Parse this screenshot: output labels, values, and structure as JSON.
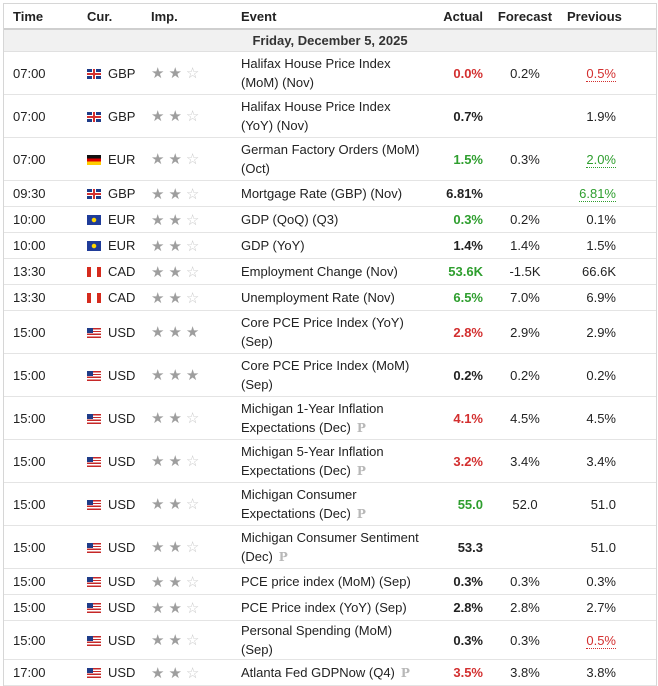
{
  "columns": {
    "time": "Time",
    "currency": "Cur.",
    "importance": "Imp.",
    "event": "Event",
    "actual": "Actual",
    "forecast": "Forecast",
    "previous": "Previous"
  },
  "date_header": "Friday, December 5, 2025",
  "colors": {
    "negative": "#d32f2f",
    "positive": "#2e9e2e"
  },
  "preliminary_marker": "P",
  "events": [
    {
      "time": "07:00",
      "flag": "gb",
      "currency": "GBP",
      "importance": 2,
      "event": "Halifax House Price Index (MoM) (Nov)",
      "lines": 2,
      "actual": "0.0%",
      "actual_color": "red",
      "forecast": "0.2%",
      "previous": "0.5%",
      "previous_color": "red",
      "previous_revised": true
    },
    {
      "time": "07:00",
      "flag": "gb",
      "currency": "GBP",
      "importance": 2,
      "event": "Halifax House Price Index (YoY) (Nov)",
      "lines": 2,
      "actual": "0.7%",
      "forecast": "",
      "previous": "1.9%"
    },
    {
      "time": "07:00",
      "flag": "de",
      "currency": "EUR",
      "importance": 2,
      "event": "German Factory Orders (MoM) (Oct)",
      "lines": 2,
      "actual": "1.5%",
      "actual_color": "green",
      "forecast": "0.3%",
      "previous": "2.0%",
      "previous_color": "green",
      "previous_revised": true
    },
    {
      "time": "09:30",
      "flag": "gb",
      "currency": "GBP",
      "importance": 2,
      "event": "Mortgage Rate (GBP) (Nov)",
      "lines": 1,
      "actual": "6.81%",
      "forecast": "",
      "previous": "6.81%",
      "previous_color": "green",
      "previous_revised": true
    },
    {
      "time": "10:00",
      "flag": "eu",
      "currency": "EUR",
      "importance": 2,
      "event": "GDP (QoQ) (Q3)",
      "lines": 1,
      "actual": "0.3%",
      "actual_color": "green",
      "forecast": "0.2%",
      "previous": "0.1%"
    },
    {
      "time": "10:00",
      "flag": "eu",
      "currency": "EUR",
      "importance": 2,
      "event": "GDP (YoY)",
      "lines": 1,
      "actual": "1.4%",
      "forecast": "1.4%",
      "previous": "1.5%"
    },
    {
      "time": "13:30",
      "flag": "ca",
      "currency": "CAD",
      "importance": 2,
      "event": "Employment Change (Nov)",
      "lines": 1,
      "actual": "53.6K",
      "actual_color": "green",
      "forecast": "-1.5K",
      "previous": "66.6K"
    },
    {
      "time": "13:30",
      "flag": "ca",
      "currency": "CAD",
      "importance": 2,
      "event": "Unemployment Rate (Nov)",
      "lines": 1,
      "actual": "6.5%",
      "actual_color": "green",
      "forecast": "7.0%",
      "previous": "6.9%"
    },
    {
      "time": "15:00",
      "flag": "us",
      "currency": "USD",
      "importance": 3,
      "event": "Core PCE Price Index (YoY) (Sep)",
      "lines": 2,
      "actual": "2.8%",
      "actual_color": "red",
      "forecast": "2.9%",
      "previous": "2.9%"
    },
    {
      "time": "15:00",
      "flag": "us",
      "currency": "USD",
      "importance": 3,
      "event": "Core PCE Price Index (MoM) (Sep)",
      "lines": 2,
      "actual": "0.2%",
      "forecast": "0.2%",
      "previous": "0.2%"
    },
    {
      "time": "15:00",
      "flag": "us",
      "currency": "USD",
      "importance": 2,
      "event": "Michigan 1-Year Inflation Expectations (Dec)",
      "lines": 2,
      "preliminary": true,
      "actual": "4.1%",
      "actual_color": "red",
      "forecast": "4.5%",
      "previous": "4.5%"
    },
    {
      "time": "15:00",
      "flag": "us",
      "currency": "USD",
      "importance": 2,
      "event": "Michigan 5-Year Inflation Expectations (Dec)",
      "lines": 2,
      "preliminary": true,
      "actual": "3.2%",
      "actual_color": "red",
      "forecast": "3.4%",
      "previous": "3.4%"
    },
    {
      "time": "15:00",
      "flag": "us",
      "currency": "USD",
      "importance": 2,
      "event": "Michigan Consumer Expectations (Dec)",
      "lines": 2,
      "preliminary": true,
      "actual": "55.0",
      "actual_color": "green",
      "forecast": "52.0",
      "previous": "51.0"
    },
    {
      "time": "15:00",
      "flag": "us",
      "currency": "USD",
      "importance": 2,
      "event": "Michigan Consumer Sentiment (Dec)",
      "lines": 2,
      "preliminary": true,
      "actual": "53.3",
      "forecast": "",
      "previous": "51.0"
    },
    {
      "time": "15:00",
      "flag": "us",
      "currency": "USD",
      "importance": 2,
      "event": "PCE price index (MoM) (Sep)",
      "lines": 1,
      "actual": "0.3%",
      "forecast": "0.3%",
      "previous": "0.3%"
    },
    {
      "time": "15:00",
      "flag": "us",
      "currency": "USD",
      "importance": 2,
      "event": "PCE Price index (YoY) (Sep)",
      "lines": 1,
      "actual": "2.8%",
      "forecast": "2.8%",
      "previous": "2.7%"
    },
    {
      "time": "15:00",
      "flag": "us",
      "currency": "USD",
      "importance": 2,
      "event": "Personal Spending (MoM) (Sep)",
      "lines": 1,
      "actual": "0.3%",
      "forecast": "0.3%",
      "previous": "0.5%",
      "previous_color": "red",
      "previous_revised": true
    },
    {
      "time": "17:00",
      "flag": "us",
      "currency": "USD",
      "importance": 2,
      "event": "Atlanta Fed GDPNow (Q4)",
      "lines": 1,
      "preliminary": true,
      "actual": "3.5%",
      "actual_color": "red",
      "forecast": "3.8%",
      "previous": "3.8%"
    }
  ]
}
